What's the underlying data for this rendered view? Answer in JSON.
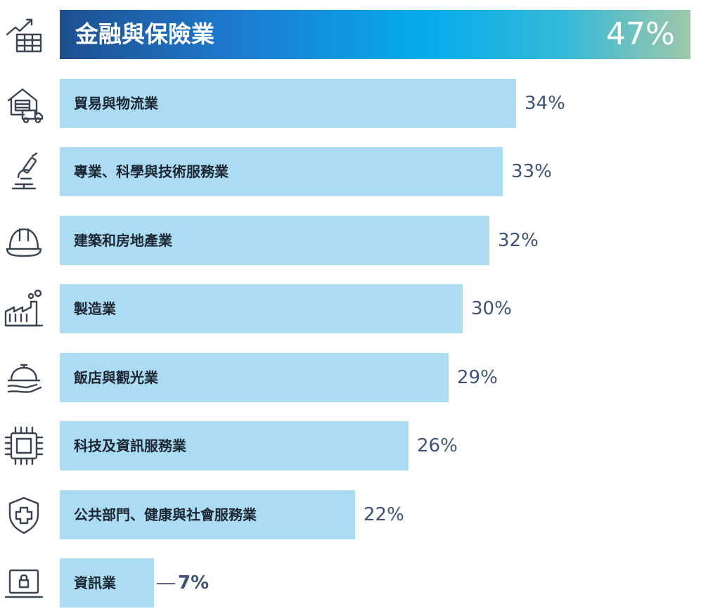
{
  "chart_data": {
    "type": "bar",
    "orientation": "horizontal",
    "categories": [
      "金融與保險業",
      "貿易與物流業",
      "專業、科學與技術服務業",
      "建築和房地產業",
      "製造業",
      "飯店與觀光業",
      "科技及資訊服務業",
      "公共部門、健康與社會服務業",
      "資訊業"
    ],
    "values": [
      47,
      34,
      33,
      32,
      30,
      29,
      26,
      22,
      7
    ],
    "value_labels": [
      "47%",
      "34%",
      "33%",
      "32%",
      "30%",
      "29%",
      "26%",
      "22%",
      "7%"
    ],
    "icons": [
      "finance-chart-icon",
      "warehouse-truck-icon",
      "microscope-icon",
      "hard-hat-icon",
      "factory-icon",
      "cloche-serving-icon",
      "microchip-icon",
      "medical-shield-icon",
      "laptop-lock-icon"
    ],
    "xlim": [
      0,
      47
    ],
    "grid": false,
    "legend": "none",
    "colors": {
      "bar": "#abdcf3",
      "highlight_start": "#1e4f8f",
      "highlight_mid": "#05aced",
      "highlight_end": "#9ec8a8",
      "value_text": "#3f5375",
      "label_text": "#1c2733",
      "icon_stroke": "#3a4350"
    }
  }
}
